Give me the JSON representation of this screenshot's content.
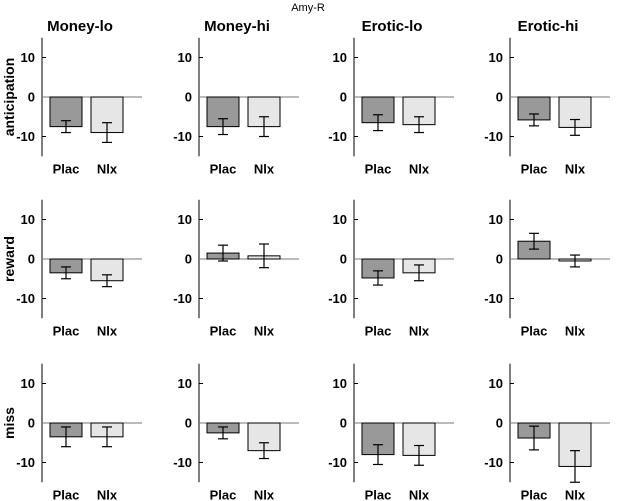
{
  "title": "Amy-R",
  "chart_data": {
    "type": "bar",
    "title": "Amy-R",
    "columns": [
      "Money-lo",
      "Money-hi",
      "Erotic-lo",
      "Erotic-hi"
    ],
    "rows": [
      "anticipation",
      "reward",
      "miss"
    ],
    "categories": [
      "Plac",
      "Nlx"
    ],
    "yticks": [
      10,
      0,
      -10
    ],
    "ylim": [
      -15,
      15
    ],
    "grid": false,
    "colors": {
      "Plac": "#999999",
      "Nlx": "#e6e6e6"
    },
    "panels": [
      {
        "row": "anticipation",
        "column": "Money-lo",
        "values": [
          -7.5,
          -9.0
        ],
        "errors": [
          1.5,
          2.5
        ]
      },
      {
        "row": "anticipation",
        "column": "Money-hi",
        "values": [
          -7.5,
          -7.5
        ],
        "errors": [
          2.0,
          2.5
        ]
      },
      {
        "row": "anticipation",
        "column": "Erotic-lo",
        "values": [
          -6.5,
          -7.0
        ],
        "errors": [
          2.0,
          2.0
        ]
      },
      {
        "row": "anticipation",
        "column": "Erotic-hi",
        "values": [
          -5.8,
          -7.7
        ],
        "errors": [
          1.5,
          2.0
        ]
      },
      {
        "row": "reward",
        "column": "Money-lo",
        "values": [
          -3.5,
          -5.5
        ],
        "errors": [
          1.5,
          1.5
        ]
      },
      {
        "row": "reward",
        "column": "Money-hi",
        "values": [
          1.5,
          0.8
        ],
        "errors": [
          2.0,
          3.0
        ]
      },
      {
        "row": "reward",
        "column": "Erotic-lo",
        "values": [
          -4.8,
          -3.5
        ],
        "errors": [
          1.8,
          2.0
        ]
      },
      {
        "row": "reward",
        "column": "Erotic-hi",
        "values": [
          4.5,
          -0.5
        ],
        "errors": [
          2.0,
          1.5
        ]
      },
      {
        "row": "miss",
        "column": "Money-lo",
        "values": [
          -3.5,
          -3.5
        ],
        "errors": [
          2.5,
          2.5
        ]
      },
      {
        "row": "miss",
        "column": "Money-hi",
        "values": [
          -2.5,
          -7.0
        ],
        "errors": [
          1.5,
          2.0
        ]
      },
      {
        "row": "miss",
        "column": "Erotic-lo",
        "values": [
          -8.0,
          -8.2
        ],
        "errors": [
          2.5,
          2.5
        ]
      },
      {
        "row": "miss",
        "column": "Erotic-hi",
        "values": [
          -3.8,
          -11.0
        ],
        "errors": [
          3.0,
          4.0
        ]
      }
    ]
  }
}
